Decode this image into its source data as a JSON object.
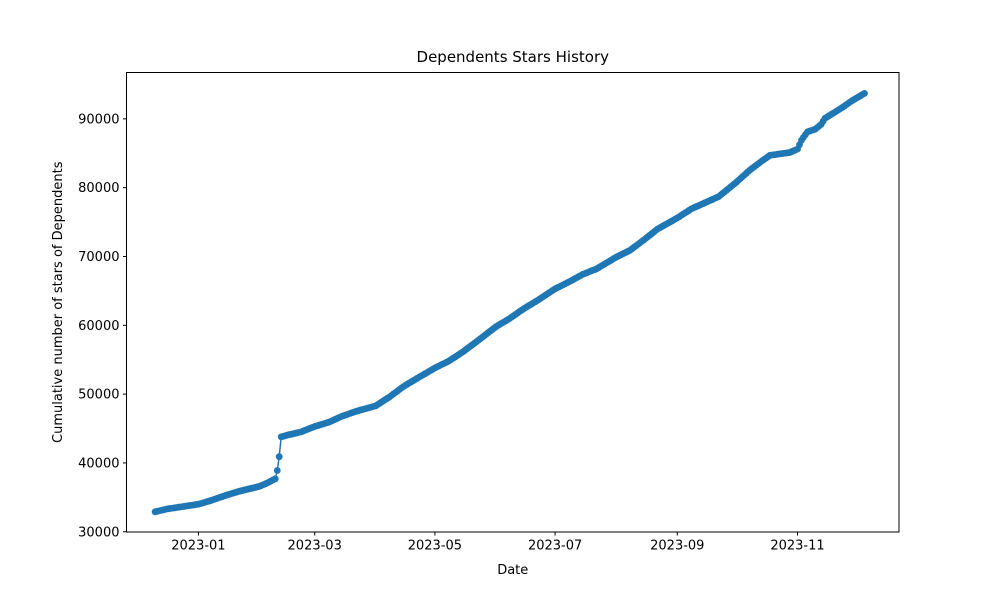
{
  "chart_data": {
    "type": "line",
    "title": "Dependents Stars History",
    "xlabel": "Date",
    "ylabel": "Cumulative number of stars of Dependents",
    "series_color": "#1f77b4",
    "axis_color": "#000000",
    "background_color": "#ffffff",
    "grid": false,
    "legend": null,
    "marker": "o",
    "x_tick_labels": [
      "2023-01",
      "2023-03",
      "2023-05",
      "2023-07",
      "2023-09",
      "2023-11"
    ],
    "y_ticks": [
      30000,
      40000,
      50000,
      60000,
      70000,
      80000,
      90000
    ],
    "x_epoch": "2023-01-01",
    "xlim_days": [
      -36.5,
      355.5
    ],
    "ylim": [
      29965,
      96735
    ],
    "series": [
      {
        "name": "Cumulative number of stars of Dependents",
        "point_frequency": "daily",
        "anchors": [
          [
            "2022-12-10",
            32900
          ],
          [
            "2022-12-16",
            33300
          ],
          [
            "2022-12-24",
            33650
          ],
          [
            "2023-01-01",
            34000
          ],
          [
            "2023-01-08",
            34600
          ],
          [
            "2023-01-15",
            35300
          ],
          [
            "2023-01-22",
            35900
          ],
          [
            "2023-02-01",
            36600
          ],
          [
            "2023-02-05",
            37100
          ],
          [
            "2023-02-09",
            37700
          ],
          [
            "2023-02-10",
            38900
          ],
          [
            "2023-02-11",
            40900
          ],
          [
            "2023-02-12",
            43800
          ],
          [
            "2023-02-16",
            44100
          ],
          [
            "2023-02-22",
            44500
          ],
          [
            "2023-03-01",
            45300
          ],
          [
            "2023-03-08",
            45900
          ],
          [
            "2023-03-15",
            46800
          ],
          [
            "2023-03-22",
            47500
          ],
          [
            "2023-04-01",
            48300
          ],
          [
            "2023-04-08",
            49600
          ],
          [
            "2023-04-15",
            51100
          ],
          [
            "2023-04-22",
            52300
          ],
          [
            "2023-05-01",
            53800
          ],
          [
            "2023-05-08",
            54800
          ],
          [
            "2023-05-15",
            56100
          ],
          [
            "2023-05-22",
            57600
          ],
          [
            "2023-06-01",
            59800
          ],
          [
            "2023-06-08",
            61000
          ],
          [
            "2023-06-15",
            62400
          ],
          [
            "2023-06-22",
            63600
          ],
          [
            "2023-07-01",
            65300
          ],
          [
            "2023-07-08",
            66300
          ],
          [
            "2023-07-15",
            67400
          ],
          [
            "2023-07-22",
            68200
          ],
          [
            "2023-08-01",
            69900
          ],
          [
            "2023-08-08",
            70900
          ],
          [
            "2023-08-15",
            72400
          ],
          [
            "2023-08-22",
            74000
          ],
          [
            "2023-09-01",
            75600
          ],
          [
            "2023-09-08",
            76900
          ],
          [
            "2023-09-15",
            77800
          ],
          [
            "2023-09-22",
            78700
          ],
          [
            "2023-10-01",
            80800
          ],
          [
            "2023-10-08",
            82600
          ],
          [
            "2023-10-15",
            84100
          ],
          [
            "2023-10-18",
            84700
          ],
          [
            "2023-10-28",
            85100
          ],
          [
            "2023-11-01",
            85600
          ],
          [
            "2023-11-03",
            86900
          ],
          [
            "2023-11-06",
            88100
          ],
          [
            "2023-11-10",
            88500
          ],
          [
            "2023-11-13",
            89200
          ],
          [
            "2023-11-15",
            90100
          ],
          [
            "2023-11-19",
            90800
          ],
          [
            "2023-11-24",
            91700
          ],
          [
            "2023-11-29",
            92700
          ],
          [
            "2023-12-05",
            93700
          ]
        ]
      }
    ]
  }
}
